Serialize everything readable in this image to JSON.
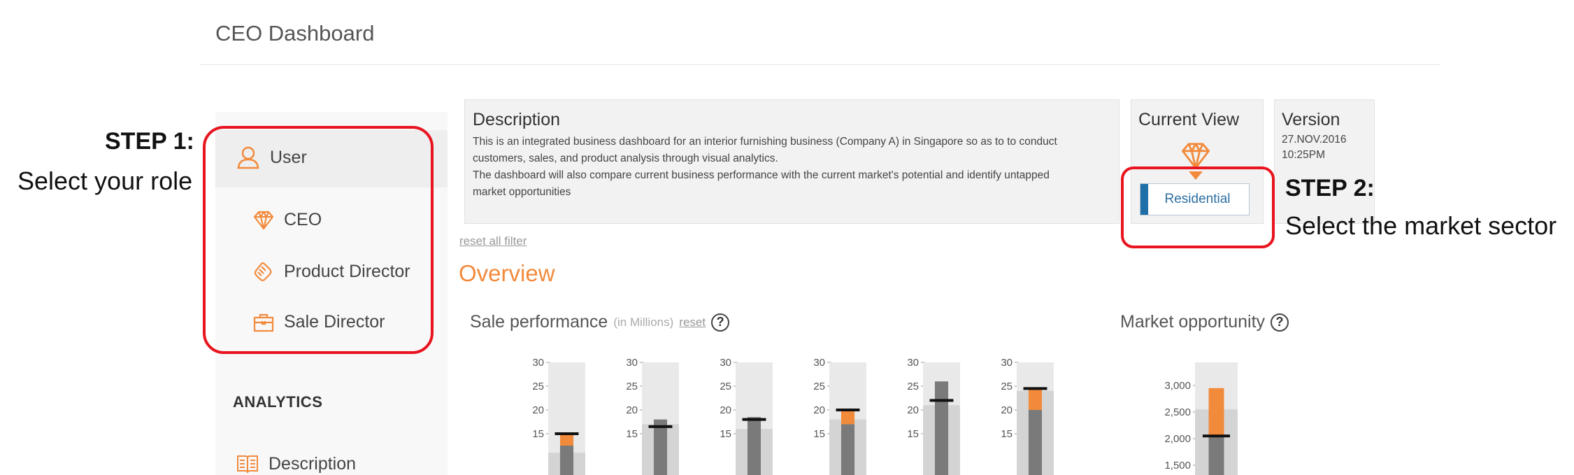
{
  "header": {
    "title": "CEO Dashboard"
  },
  "sidebar": {
    "user_label": "User",
    "roles": [
      {
        "label": "CEO",
        "icon": "diamond-icon"
      },
      {
        "label": "Product Director",
        "icon": "handshake-icon"
      },
      {
        "label": "Sale Director",
        "icon": "briefcase-icon"
      }
    ],
    "analytics_heading": "ANALYTICS",
    "analytics_items": [
      {
        "label": "Description",
        "icon": "book-icon"
      }
    ]
  },
  "annotations": {
    "step1_title": "STEP 1:",
    "step1_text": "Select your role",
    "step2_title": "STEP 2:",
    "step2_text": "Select the market sector",
    "highlight_color": "#e8141f"
  },
  "description": {
    "heading": "Description",
    "lines": [
      "This is an integrated business dashboard for an interior furnishing business (Company A) in Singapore so as to to conduct",
      "customers, sales, and product analysis through visual analytics.",
      "The dashboard will also compare current business performance with the current market's potential and identify untapped",
      "market opportunities"
    ]
  },
  "current_view": {
    "heading": "Current View",
    "sector": "Residential",
    "icon": "diamond-icon"
  },
  "version": {
    "heading": "Version",
    "date": "27.NOV.2016",
    "time": "10:25PM"
  },
  "filters": {
    "reset_all": "reset all filter"
  },
  "overview": {
    "title": "Overview"
  },
  "sale_performance": {
    "title": "Sale performance",
    "unit_note": "(in Millions)",
    "reset": "reset",
    "help_icon": "?"
  },
  "market_opportunity": {
    "title": "Market opportunity",
    "help_icon": "?"
  },
  "colors": {
    "accent": "#f28a3c",
    "bar_actual": "#7a7a7a",
    "target": "#111111",
    "band_bg": "#e9e9e9",
    "band_mid": "#d4d4d4",
    "selected": "#1f6fa8"
  },
  "chart_data": [
    {
      "type": "bullet",
      "title": "Sale performance",
      "unit": "(in Millions)",
      "ticks": [
        30,
        25,
        20,
        15
      ],
      "ylim": [
        0,
        30
      ],
      "bullets": [
        {
          "actual": 12.5,
          "overshoot_to": 15,
          "target": 15,
          "band": 11
        },
        {
          "actual": 18,
          "target": 16.5,
          "band": 17
        },
        {
          "actual": 18.5,
          "target": 18,
          "band": 16
        },
        {
          "actual": 17,
          "overshoot_to": 20,
          "target": 20,
          "band": 18
        },
        {
          "actual": 26,
          "target": 22,
          "band": 21
        },
        {
          "actual": 20,
          "overshoot_to": 24.5,
          "target": 24.5,
          "band": 24
        }
      ]
    },
    {
      "type": "bullet",
      "title": "Market opportunity",
      "ticks": [
        "3,000",
        "2,500",
        "2,000",
        "1,500"
      ],
      "tick_values": [
        3000,
        2500,
        2000,
        1500
      ],
      "ylim": [
        0,
        3500
      ],
      "bullets": [
        {
          "actual": 2050,
          "overshoot_to": 2950,
          "target": 2050,
          "band": 2550
        }
      ]
    }
  ]
}
